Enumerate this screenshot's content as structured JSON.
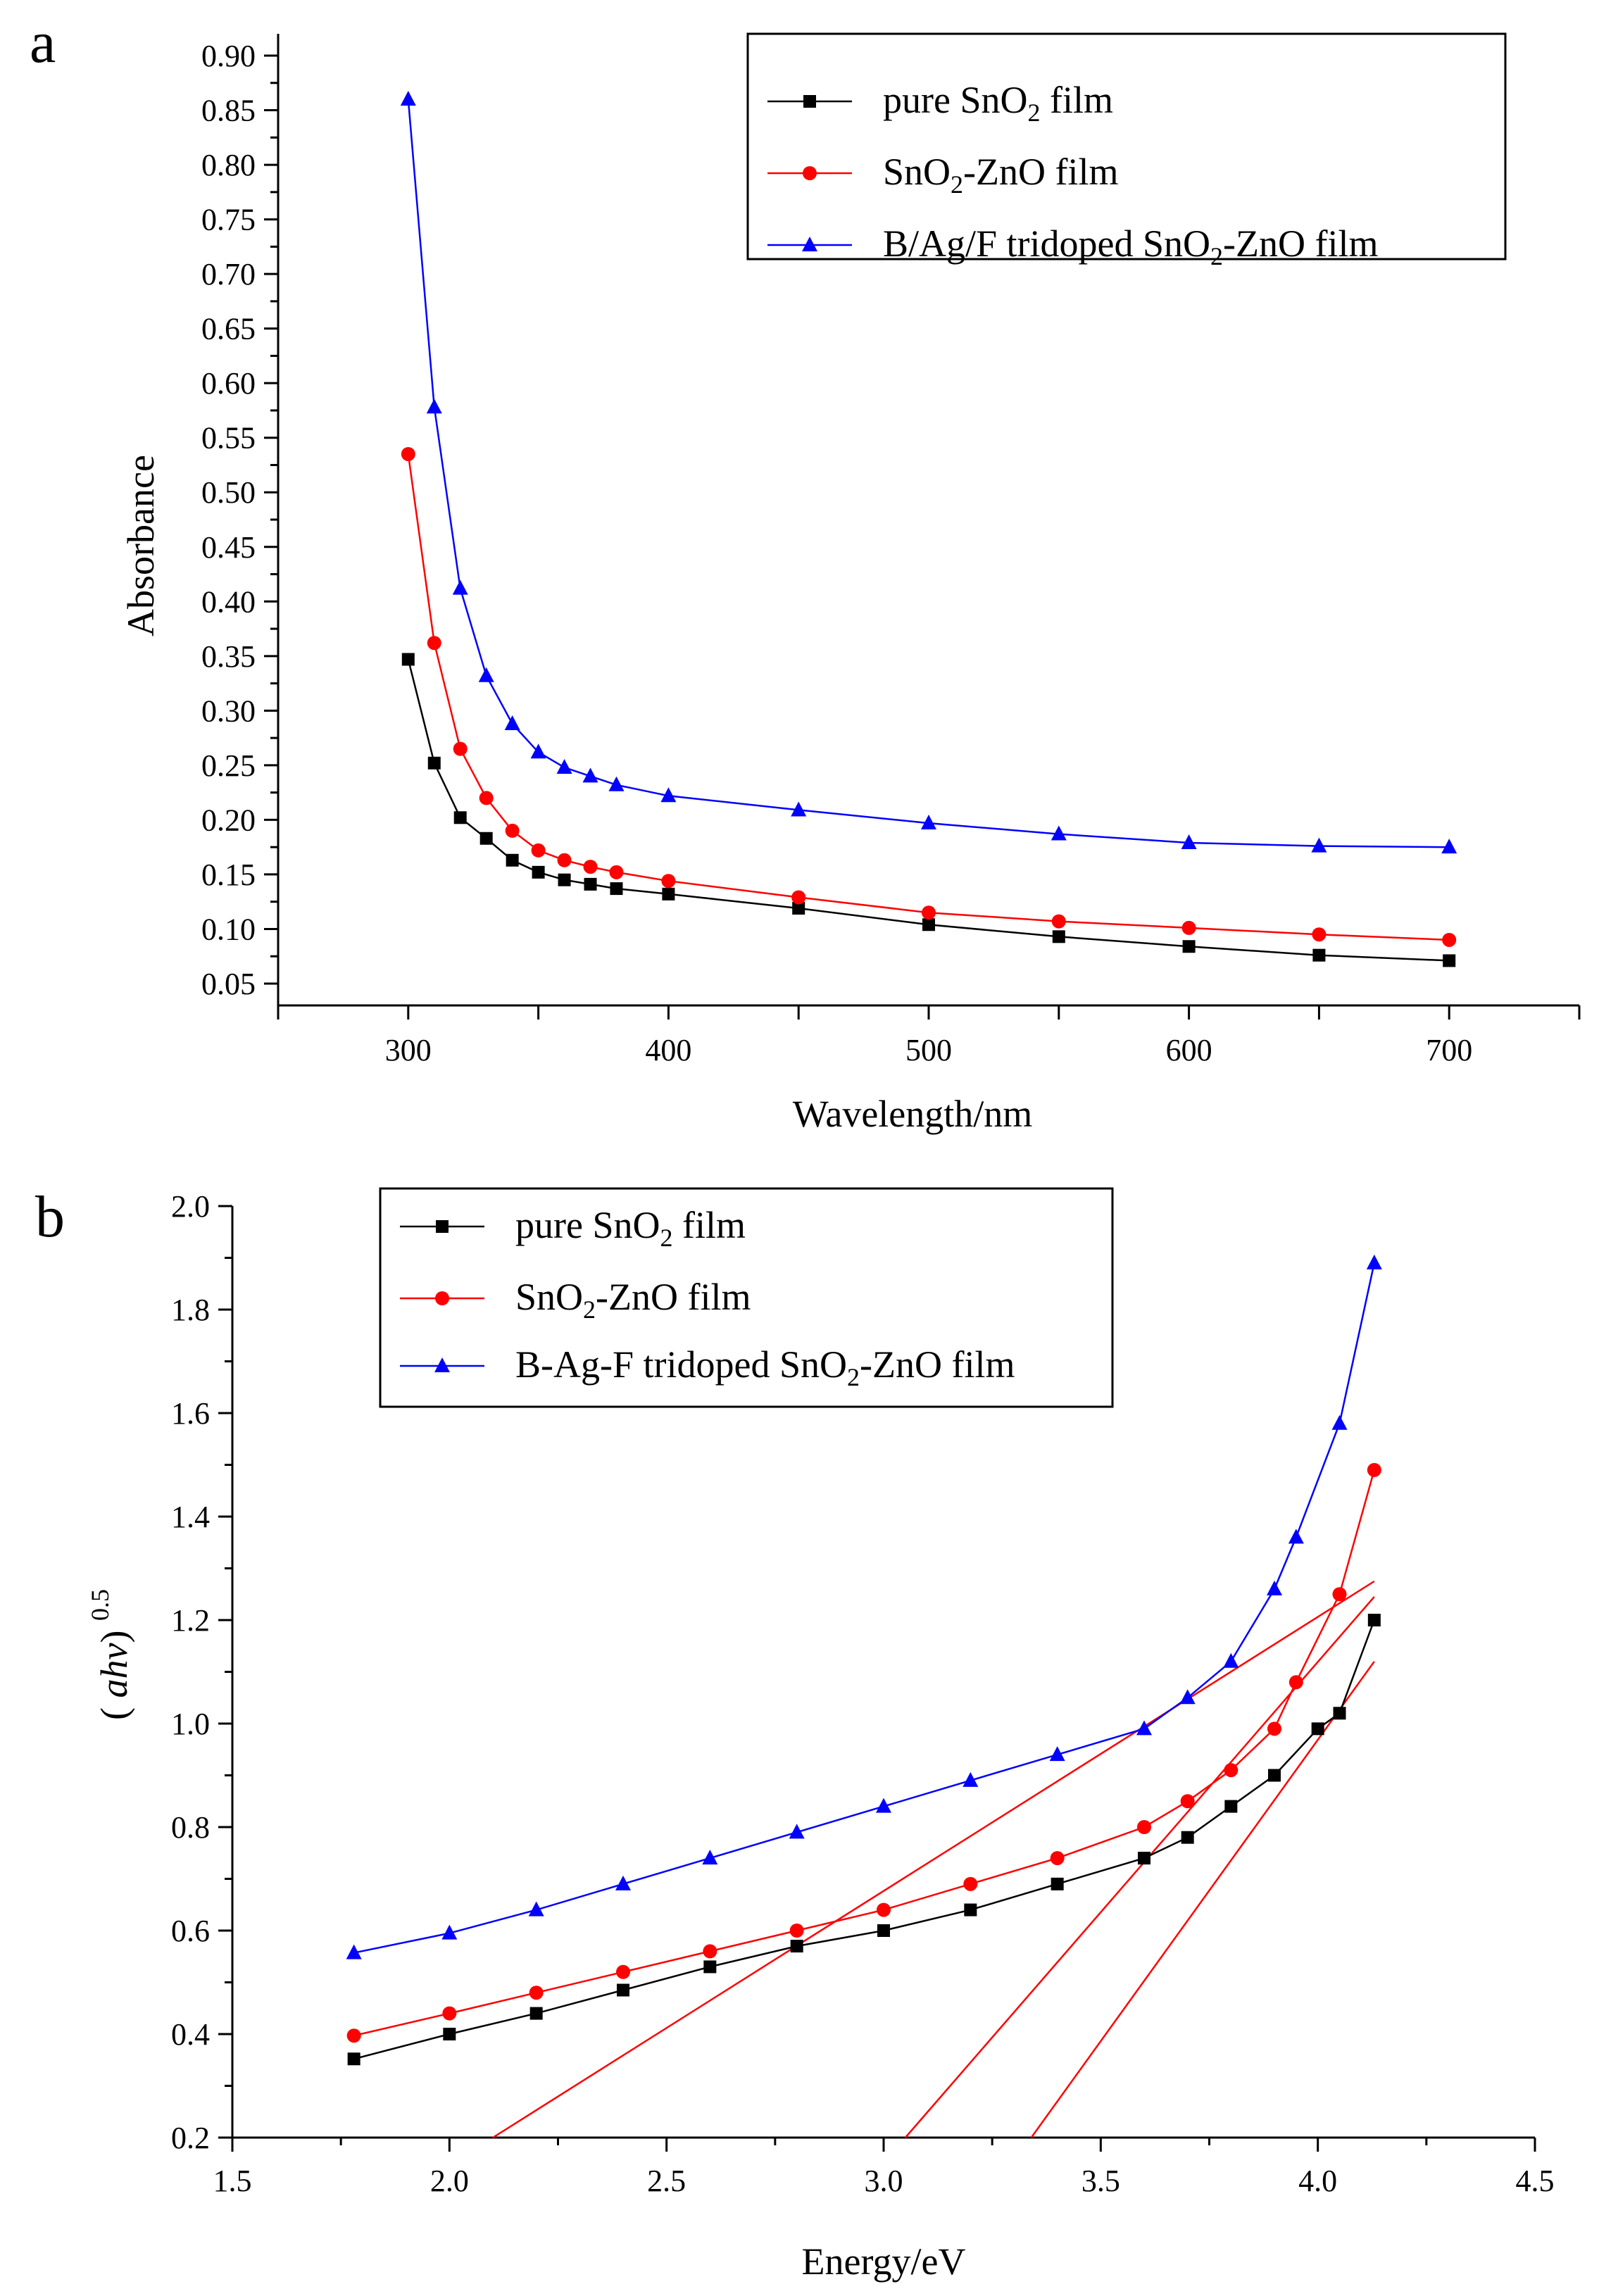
{
  "chart_data": [
    {
      "panel_label": "a",
      "type": "line",
      "xlabel": "Wavelength/nm",
      "ylabel": "Absorbance",
      "xlim": [
        250,
        750
      ],
      "ylim": [
        0.03,
        0.92
      ],
      "xticks": [
        "300",
        "400",
        "500",
        "600",
        "700"
      ],
      "yticks": [
        "0.05",
        "0.10",
        "0.15",
        "0.20",
        "0.25",
        "0.30",
        "0.35",
        "0.40",
        "0.45",
        "0.50",
        "0.55",
        "0.60",
        "0.65",
        "0.70",
        "0.75",
        "0.80",
        "0.85",
        "0.90"
      ],
      "legend_position": "top-right",
      "series": [
        {
          "name_base": "pure SnO",
          "name_sub": "2",
          "name_tail": " film",
          "color": "#000000",
          "marker": "square",
          "x": [
            300,
            310,
            320,
            330,
            340,
            350,
            360,
            370,
            380,
            400,
            450,
            500,
            550,
            600,
            650,
            700
          ],
          "y": [
            0.347,
            0.252,
            0.202,
            0.183,
            0.163,
            0.152,
            0.145,
            0.141,
            0.137,
            0.132,
            0.119,
            0.104,
            0.093,
            0.084,
            0.076,
            0.071
          ]
        },
        {
          "name_base": "SnO",
          "name_sub": "2",
          "name_tail": "-ZnO film",
          "color": "#ff0000",
          "marker": "circle",
          "x": [
            300,
            310,
            320,
            330,
            340,
            350,
            360,
            370,
            380,
            400,
            450,
            500,
            550,
            600,
            650,
            700
          ],
          "y": [
            0.535,
            0.362,
            0.265,
            0.22,
            0.19,
            0.172,
            0.163,
            0.157,
            0.152,
            0.144,
            0.129,
            0.115,
            0.107,
            0.101,
            0.095,
            0.09
          ]
        },
        {
          "name_base": "B/Ag/F tridoped SnO",
          "name_sub": "2",
          "name_tail": "-ZnO film",
          "color": "#0000ff",
          "marker": "triangle",
          "x": [
            300,
            310,
            320,
            330,
            340,
            350,
            360,
            370,
            380,
            400,
            450,
            500,
            550,
            600,
            650,
            700
          ],
          "y": [
            0.86,
            0.578,
            0.412,
            0.332,
            0.288,
            0.262,
            0.248,
            0.24,
            0.232,
            0.222,
            0.209,
            0.197,
            0.187,
            0.179,
            0.176,
            0.175
          ]
        }
      ]
    },
    {
      "panel_label": "b",
      "type": "line",
      "xlabel": "Energy/eV",
      "ylabel_parts": [
        "(",
        "ahv",
        ")",
        "0.5"
      ],
      "xlim": [
        1.5,
        4.5
      ],
      "ylim": [
        0.2,
        2.0
      ],
      "xticks": [
        "1.5",
        "2.0",
        "2.5",
        "3.0",
        "3.5",
        "4.0",
        "4.5"
      ],
      "yticks": [
        "0.2",
        "0.4",
        "0.6",
        "0.8",
        "1.0",
        "1.2",
        "1.4",
        "1.6",
        "1.8",
        "2.0"
      ],
      "legend_position": "top-left",
      "series": [
        {
          "name_base": "pure SnO",
          "name_sub": "2",
          "name_tail": " film",
          "color": "#000000",
          "marker": "square",
          "x": [
            1.78,
            2.0,
            2.2,
            2.4,
            2.6,
            2.8,
            3.0,
            3.2,
            3.4,
            3.6,
            3.7,
            3.8,
            3.9,
            4.0,
            4.05,
            4.13
          ],
          "y": [
            0.352,
            0.4,
            0.44,
            0.485,
            0.53,
            0.57,
            0.6,
            0.64,
            0.69,
            0.74,
            0.78,
            0.84,
            0.9,
            0.99,
            1.02,
            1.2
          ]
        },
        {
          "name_base": "SnO",
          "name_sub": "2",
          "name_tail": "-ZnO film",
          "color": "#ff0000",
          "marker": "circle",
          "x": [
            1.78,
            2.0,
            2.2,
            2.4,
            2.6,
            2.8,
            3.0,
            3.2,
            3.4,
            3.6,
            3.7,
            3.8,
            3.9,
            3.95,
            4.05,
            4.13
          ],
          "y": [
            0.397,
            0.44,
            0.48,
            0.52,
            0.56,
            0.6,
            0.64,
            0.69,
            0.74,
            0.8,
            0.85,
            0.91,
            0.99,
            1.08,
            1.25,
            1.49
          ]
        },
        {
          "name_base": "B-Ag-F tridoped SnO",
          "name_sub": "2",
          "name_tail": "-ZnO film",
          "color": "#0000ff",
          "marker": "triangle",
          "x": [
            1.78,
            2.0,
            2.2,
            2.4,
            2.6,
            2.8,
            3.0,
            3.2,
            3.4,
            3.6,
            3.7,
            3.8,
            3.9,
            3.95,
            4.05,
            4.13
          ],
          "y": [
            0.557,
            0.595,
            0.64,
            0.69,
            0.74,
            0.79,
            0.84,
            0.89,
            0.94,
            0.99,
            1.05,
            1.12,
            1.26,
            1.36,
            1.58,
            1.89
          ]
        }
      ],
      "tangent_lines": [
        {
          "color": "#ff0000",
          "x": [
            2.1,
            4.13
          ],
          "y": [
            0.2,
            1.275
          ]
        },
        {
          "color": "#ff0000",
          "x": [
            3.05,
            4.13
          ],
          "y": [
            0.2,
            1.245
          ]
        },
        {
          "color": "#ff0000",
          "x": [
            3.34,
            4.13
          ],
          "y": [
            0.2,
            1.12
          ]
        }
      ]
    }
  ]
}
